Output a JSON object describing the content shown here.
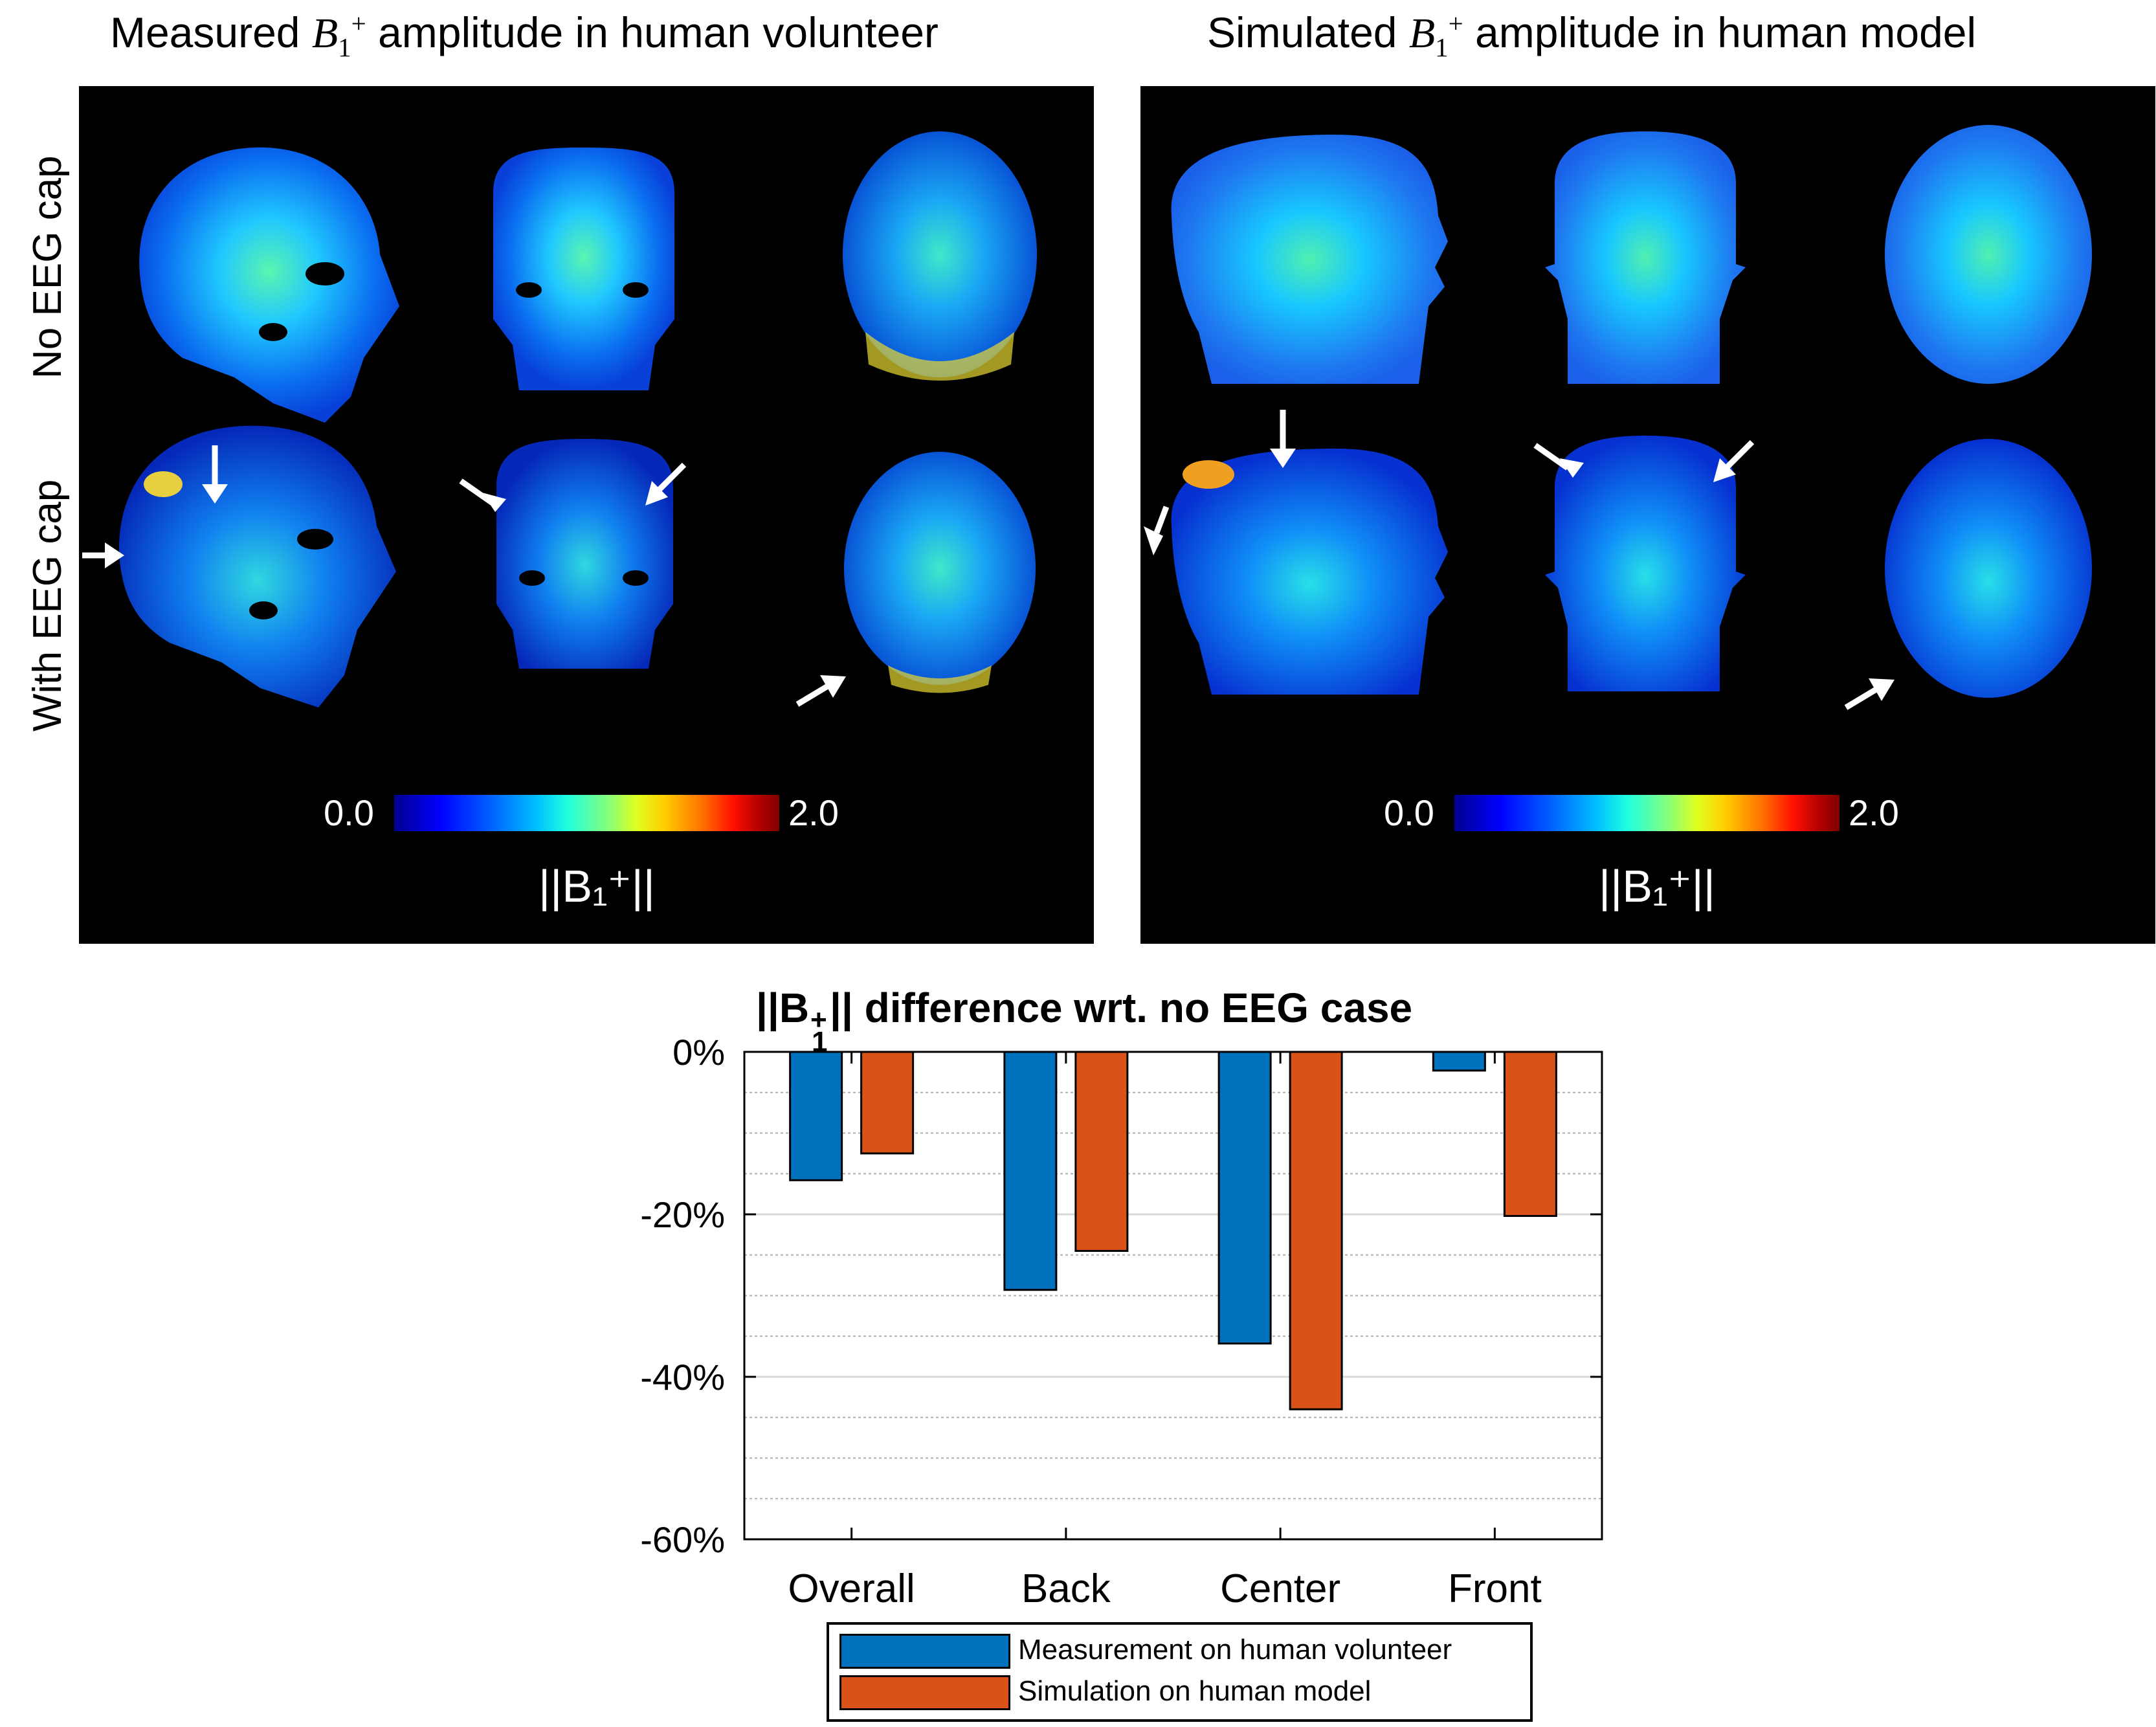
{
  "panels": {
    "left": {
      "title_prefix": "Measured",
      "title_suffix": "amplitude in human volunteer",
      "symbol_B": "B",
      "symbol_sub": "1",
      "symbol_sup": "+",
      "rows": [
        "No EEG cap",
        "With EEG cap"
      ],
      "colorbar": {
        "min": "0.0",
        "max": "2.0",
        "label": "||B₁⁺||"
      }
    },
    "right": {
      "title_prefix": "Simulated",
      "title_suffix": "amplitude in human model",
      "symbol_B": "B",
      "symbol_sub": "1",
      "symbol_sup": "+",
      "colorbar": {
        "min": "0.0",
        "max": "2.0",
        "label": "||B₁⁺||"
      }
    }
  },
  "chart_data": {
    "type": "bar",
    "title_parts": {
      "prefix": "||B",
      "sub": "1",
      "sup": "+",
      "suffix": "|| difference wrt. no EEG case"
    },
    "categories": [
      "Overall",
      "Back",
      "Center",
      "Front"
    ],
    "series": [
      {
        "name": "Measurement on human volunteer",
        "color": "#0072bd",
        "values": [
          -15.8,
          -29.3,
          -35.9,
          -2.3
        ]
      },
      {
        "name": "Simulation on human model",
        "color": "#d95319",
        "values": [
          -12.5,
          -24.5,
          -44.0,
          -20.2
        ]
      }
    ],
    "ylim": [
      -60,
      0
    ],
    "yticks": [
      0,
      -20,
      -40,
      -60
    ],
    "ytick_labels": [
      "0%",
      "-20%",
      "-40%",
      "-60%"
    ],
    "grid": true,
    "legend_position": "bottom"
  }
}
